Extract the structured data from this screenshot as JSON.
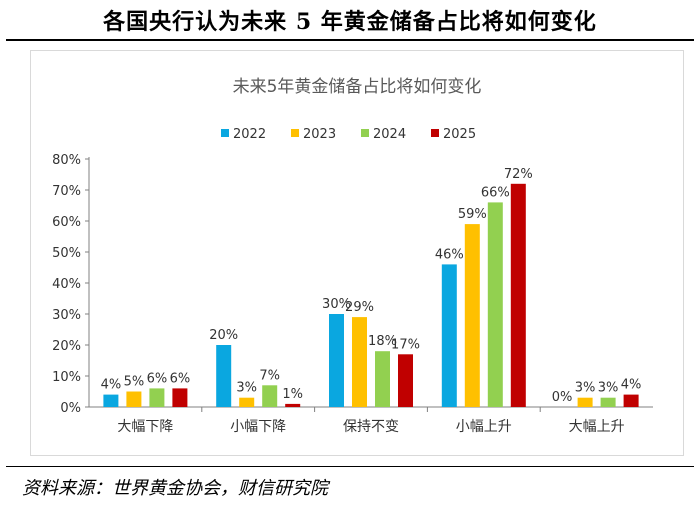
{
  "page_title": "各国央行认为未来 5 年黄金储备占比将如何变化",
  "source": "资料来源：世界黄金协会，财信研究院",
  "chart_data": {
    "type": "bar",
    "title": "未来5年黄金储备占比将如何变化",
    "xlabel": "",
    "ylabel": "",
    "ylim": [
      0,
      80
    ],
    "y_ticks": [
      0,
      10,
      20,
      30,
      40,
      50,
      60,
      70,
      80
    ],
    "y_tick_labels": [
      "0%",
      "10%",
      "20%",
      "30%",
      "40%",
      "50%",
      "60%",
      "70%",
      "80%"
    ],
    "legend_position": "top-center",
    "grid": false,
    "categories": [
      "大幅下降",
      "小幅下降",
      "保持不变",
      "小幅上升",
      "大幅上升"
    ],
    "series": [
      {
        "name": "2022",
        "color": "#0aa7e0",
        "values": [
          4,
          20,
          30,
          46,
          0
        ],
        "labels": [
          "4%",
          "20%",
          "30%",
          "46%",
          "0%"
        ]
      },
      {
        "name": "2023",
        "color": "#ffc000",
        "values": [
          5,
          3,
          29,
          59,
          3
        ],
        "labels": [
          "5%",
          "3%",
          "29%",
          "59%",
          "3%"
        ]
      },
      {
        "name": "2024",
        "color": "#92d050",
        "values": [
          6,
          7,
          18,
          66,
          3
        ],
        "labels": [
          "6%",
          "7%",
          "18%",
          "66%",
          "3%"
        ]
      },
      {
        "name": "2025",
        "color": "#c00000",
        "values": [
          6,
          1,
          17,
          72,
          4
        ],
        "labels": [
          "6%",
          "1%",
          "17%",
          "72%",
          "4%"
        ]
      }
    ]
  }
}
